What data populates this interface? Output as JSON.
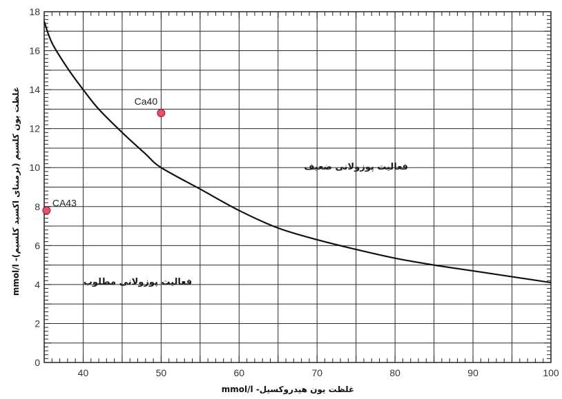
{
  "chart_data": {
    "type": "scatter",
    "xlabel": "غلظت یون هیدروکسیل- mmol/l",
    "ylabel": "غلظت یون کلسیم (برمبنای اکسید کلسیم)- mmol/l",
    "xlim": [
      35,
      100
    ],
    "ylim": [
      0,
      18
    ],
    "x_ticks": [
      40,
      50,
      60,
      70,
      80,
      90,
      100
    ],
    "y_ticks": [
      0,
      2,
      4,
      6,
      8,
      10,
      12,
      14,
      16,
      18
    ],
    "grid": true,
    "curve": {
      "x": [
        35,
        36,
        38,
        40,
        42,
        45,
        48,
        50,
        55,
        60,
        65,
        70,
        75,
        80,
        85,
        90,
        95,
        100
      ],
      "y": [
        17.5,
        16.4,
        15.1,
        14.0,
        13.0,
        11.8,
        10.7,
        10.0,
        8.9,
        7.8,
        6.9,
        6.3,
        5.8,
        5.35,
        5.0,
        4.7,
        4.4,
        4.1
      ]
    },
    "points": [
      {
        "label": "Ca40",
        "x": 50,
        "y": 12.8
      },
      {
        "label": "CA43",
        "x": 35.3,
        "y": 7.8
      }
    ],
    "regions": [
      {
        "label": "فعالیت پوزولانی ضعیف",
        "x": 75,
        "y": 9.9
      },
      {
        "label": "فعالیت پوزولانی مطلوب",
        "x": 47,
        "y": 4.0
      }
    ],
    "colors": {
      "point_fill": "#e8506a",
      "point_stroke": "#8b1a2e",
      "curve": "#111111",
      "grid": "#2a2a2a"
    }
  }
}
